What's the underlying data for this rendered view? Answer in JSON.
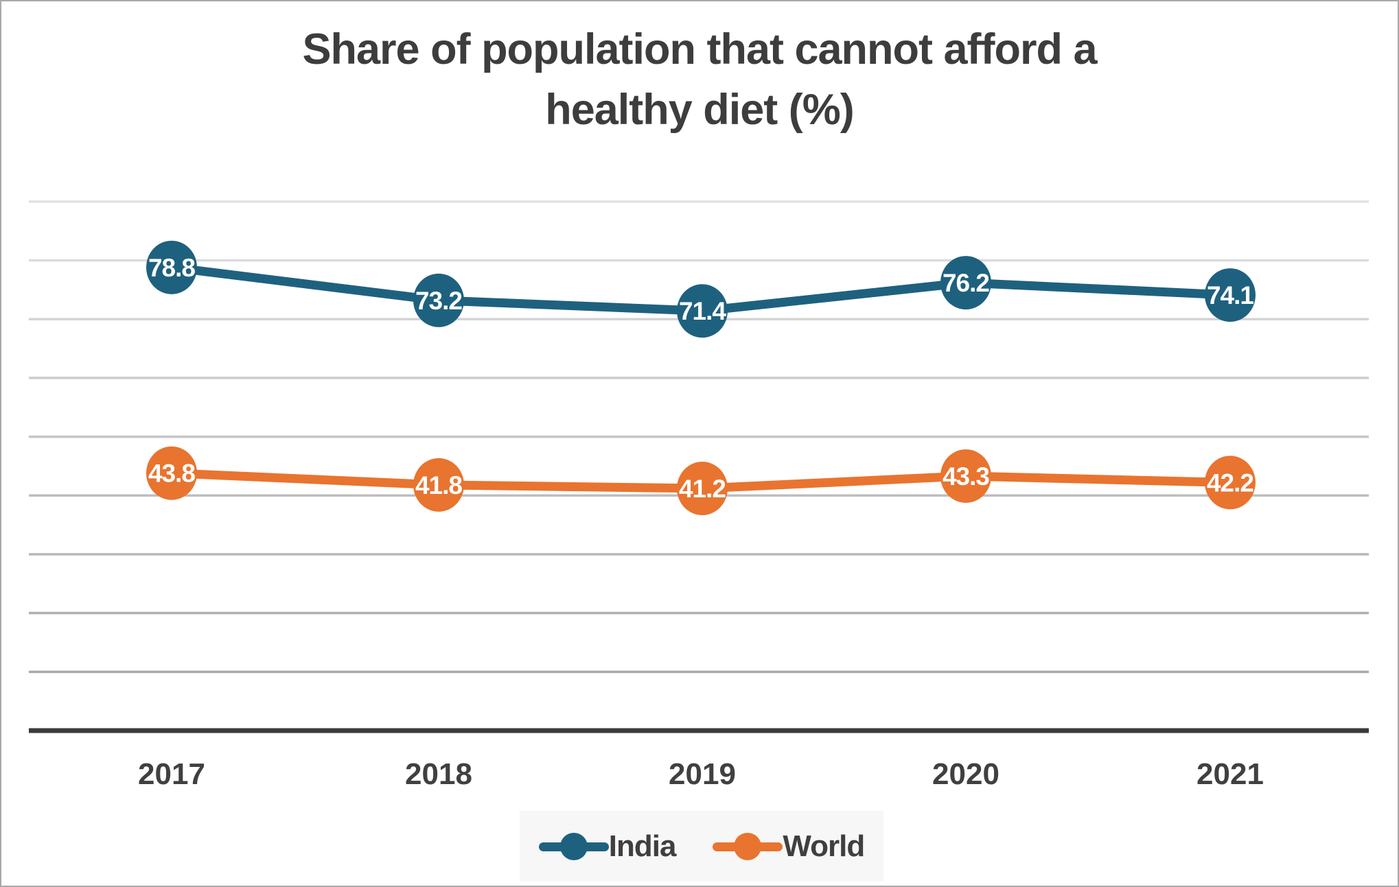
{
  "chart_data": {
    "type": "line",
    "title": "Share of population that cannot afford a healthy diet (%)",
    "title_lines": [
      "Share of population that cannot afford a",
      "healthy diet (%)"
    ],
    "categories": [
      "2017",
      "2018",
      "2019",
      "2020",
      "2021"
    ],
    "series": [
      {
        "name": "India",
        "color": "#1e617f",
        "values": [
          78.8,
          73.2,
          71.4,
          76.2,
          74.1
        ]
      },
      {
        "name": "World",
        "color": "#e8742f",
        "values": [
          43.8,
          41.8,
          41.2,
          43.3,
          42.2
        ]
      }
    ],
    "xlabel": "",
    "ylabel": "",
    "ylim": [
      0,
      90
    ],
    "grid_step": 10,
    "grid": "horizontal-only",
    "y_tick_labels_visible": false,
    "data_labels": "inside markers, one decimal",
    "legend_position": "bottom-center",
    "colors": {
      "title_text": "#3d3d3d",
      "tick_text": "#404040",
      "data_label_text": "#ffffff",
      "axis_line": "#3a3a3a",
      "gridline_top": "#e2e2e2",
      "gridline_bottom": "#a8a8a8",
      "legend_background": "#f7f7f7",
      "frame_border": "#a9a9a9"
    }
  }
}
